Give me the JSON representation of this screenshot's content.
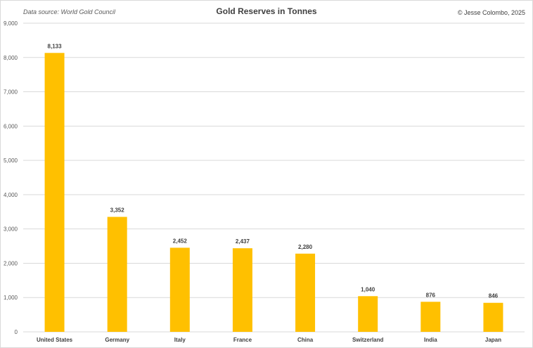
{
  "header": {
    "source": "Data source: World Gold Council",
    "title": "Gold Reserves in Tonnes",
    "credit": "© Jesse Colombo, 2025"
  },
  "colors": {
    "bar": "#FFC000",
    "grid": "#d9d9d9",
    "tick_text": "#595959",
    "label_text": "#404040"
  },
  "chart_data": {
    "type": "bar",
    "title": "Gold Reserves in Tonnes",
    "xlabel": "",
    "ylabel": "",
    "categories": [
      "United States",
      "Germany",
      "Italy",
      "France",
      "China",
      "Switzerland",
      "India",
      "Japan"
    ],
    "values": [
      8133,
      3352,
      2452,
      2437,
      2280,
      1040,
      876,
      846
    ],
    "value_labels": [
      "8,133",
      "3,352",
      "2,452",
      "2,437",
      "2,280",
      "1,040",
      "876",
      "846"
    ],
    "ylim": [
      0,
      9000
    ],
    "yticks": [
      0,
      1000,
      2000,
      3000,
      4000,
      5000,
      6000,
      7000,
      8000,
      9000
    ],
    "ytick_labels": [
      "0",
      "1,000",
      "2,000",
      "3,000",
      "4,000",
      "5,000",
      "6,000",
      "7,000",
      "8,000",
      "9,000"
    ],
    "grid": true,
    "legend": "none"
  }
}
